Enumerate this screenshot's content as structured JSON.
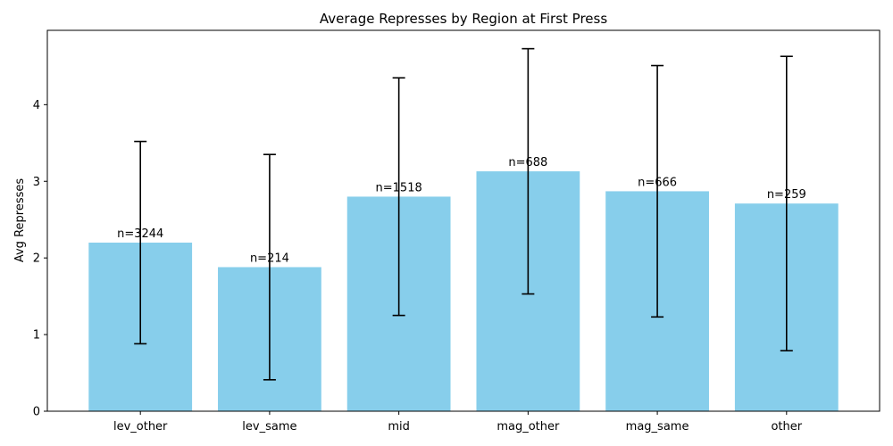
{
  "chart_data": {
    "type": "bar",
    "title": "Average Represses by Region at First Press",
    "xlabel": "",
    "ylabel": "Avg Represses",
    "categories": [
      "lev_other",
      "lev_same",
      "mid",
      "mag_other",
      "mag_same",
      "other"
    ],
    "values": [
      2.2,
      1.88,
      2.8,
      3.13,
      2.87,
      2.71
    ],
    "error": [
      1.32,
      1.47,
      1.55,
      1.6,
      1.64,
      1.92
    ],
    "data_labels": [
      "n=3244",
      "n=214",
      "n=1518",
      "n=688",
      "n=666",
      "n=259"
    ],
    "ylim": [
      0,
      4.97
    ],
    "yticks": [
      0,
      1,
      2,
      3,
      4
    ],
    "grid": false,
    "bar_color": "#87ceeb",
    "error_color": "#000000"
  }
}
